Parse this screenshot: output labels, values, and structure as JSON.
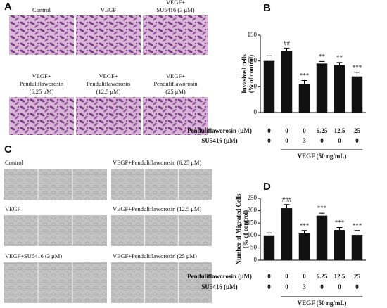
{
  "panel_labels": [
    "A",
    "B",
    "C",
    "D"
  ],
  "panel_a_captions": [
    [
      "Control"
    ],
    [
      "VEGF"
    ],
    [
      "VEGF+",
      "SU5416 (3 μM)"
    ],
    [
      "VEGF+",
      "Penduliflaworosin",
      "(6.25 μM)"
    ],
    [
      "VEGF+",
      "Penduliflaworosin",
      "(12.5 μM)"
    ],
    [
      "VEGF+",
      "Penduliflaworosin",
      "(25 μM)"
    ]
  ],
  "panel_c_captions": [
    "Control",
    "VEGF",
    "VEGF+SU5416 (3 μM)",
    "VEGF+Penduliflaworosin (6.25 μM)",
    "VEGF+Penduliflaworosin (12.5 μM)",
    "VEGF+Penduliflaworosin (25 μM)"
  ],
  "chart_data": [
    {
      "type": "bar",
      "ylabel": [
        "Invasived cells",
        "(% of control)"
      ],
      "values": [
        100,
        120,
        55,
        95,
        92,
        70
      ],
      "errors": [
        10,
        5,
        7,
        4,
        5,
        8
      ],
      "value_labels": [
        null,
        "##",
        "***",
        "**",
        "**",
        "***"
      ],
      "color": "#111111",
      "ylim": [
        0,
        150
      ],
      "yticks": [
        0,
        50,
        100,
        150
      ],
      "treatment_rows": [
        {
          "label": "Penduliflaworosin (μM)",
          "values": [
            0,
            0,
            0,
            6.25,
            12.5,
            25
          ]
        },
        {
          "label": "SU5416 (μM)",
          "values": [
            0,
            0,
            3,
            0,
            0,
            0
          ]
        }
      ],
      "group_label": "VEGF (50 ng/mL)"
    },
    {
      "type": "bar",
      "ylabel": [
        "Number of Migrated Cells",
        "(% of control)"
      ],
      "values": [
        100,
        210,
        108,
        180,
        122,
        102
      ],
      "errors": [
        10,
        15,
        12,
        10,
        10,
        18
      ],
      "value_labels": [
        null,
        "###",
        "***",
        "***",
        "***",
        "***"
      ],
      "color": "#111111",
      "ylim": [
        0,
        250
      ],
      "yticks": [
        0,
        50,
        100,
        150,
        200,
        250
      ],
      "treatment_rows": [
        {
          "label": "Penduliflaworosin (μM)",
          "values": [
            0,
            0,
            0,
            6.25,
            12.5,
            25
          ]
        },
        {
          "label": "SU5416 (μM)",
          "values": [
            0,
            0,
            3,
            0,
            0,
            0
          ]
        }
      ],
      "group_label": "VEGF (50 ng/mL)"
    }
  ]
}
